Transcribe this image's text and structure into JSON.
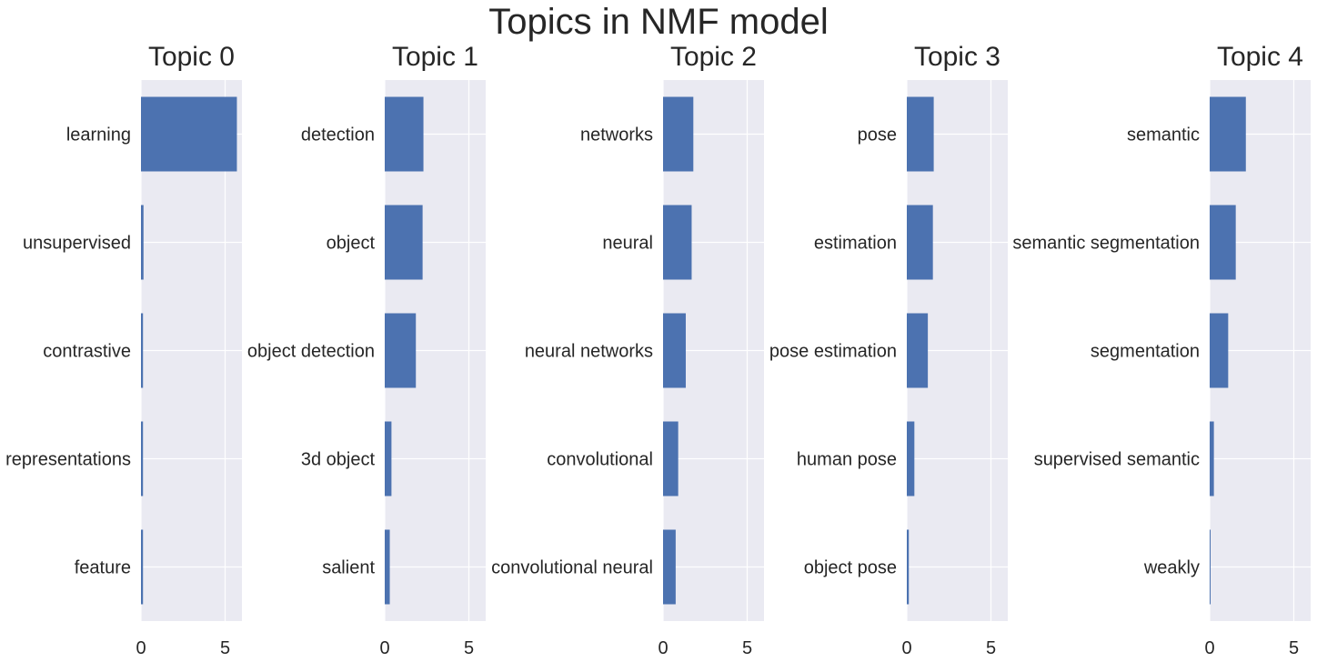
{
  "figure_title": "Topics in NMF model",
  "colors": {
    "bar": "#4c72b0",
    "panel_bg": "#eaeaf2",
    "grid": "#ffffff",
    "text": "#262626"
  },
  "chart_data": [
    {
      "type": "bar",
      "orientation": "horizontal",
      "title": "Topic 0",
      "categories": [
        "learning",
        "unsupervised",
        "contrastive",
        "representations",
        "feature"
      ],
      "values": [
        5.7,
        0.15,
        0.12,
        0.12,
        0.12
      ],
      "xlim": [
        0,
        6
      ],
      "xticks": [
        0,
        5
      ],
      "grid": true
    },
    {
      "type": "bar",
      "orientation": "horizontal",
      "title": "Topic 1",
      "categories": [
        "detection",
        "object",
        "object detection",
        "3d object",
        "salient"
      ],
      "values": [
        2.3,
        2.25,
        1.85,
        0.4,
        0.3
      ],
      "xlim": [
        0,
        6
      ],
      "xticks": [
        0,
        5
      ],
      "grid": true
    },
    {
      "type": "bar",
      "orientation": "horizontal",
      "title": "Topic 2",
      "categories": [
        "networks",
        "neural",
        "neural networks",
        "convolutional",
        "convolutional neural"
      ],
      "values": [
        1.8,
        1.7,
        1.35,
        0.9,
        0.75
      ],
      "xlim": [
        0,
        6
      ],
      "xticks": [
        0,
        5
      ],
      "grid": true
    },
    {
      "type": "bar",
      "orientation": "horizontal",
      "title": "Topic 3",
      "categories": [
        "pose",
        "estimation",
        "pose estimation",
        "human pose",
        "object pose"
      ],
      "values": [
        1.6,
        1.55,
        1.25,
        0.45,
        0.12
      ],
      "xlim": [
        0,
        6
      ],
      "xticks": [
        0,
        5
      ],
      "grid": true
    },
    {
      "type": "bar",
      "orientation": "horizontal",
      "title": "Topic 4",
      "categories": [
        "semantic",
        "semantic segmentation",
        "segmentation",
        "supervised semantic",
        "weakly"
      ],
      "values": [
        2.15,
        1.55,
        1.1,
        0.25,
        0.03
      ],
      "xlim": [
        0,
        6
      ],
      "xticks": [
        0,
        5
      ],
      "grid": true
    }
  ]
}
